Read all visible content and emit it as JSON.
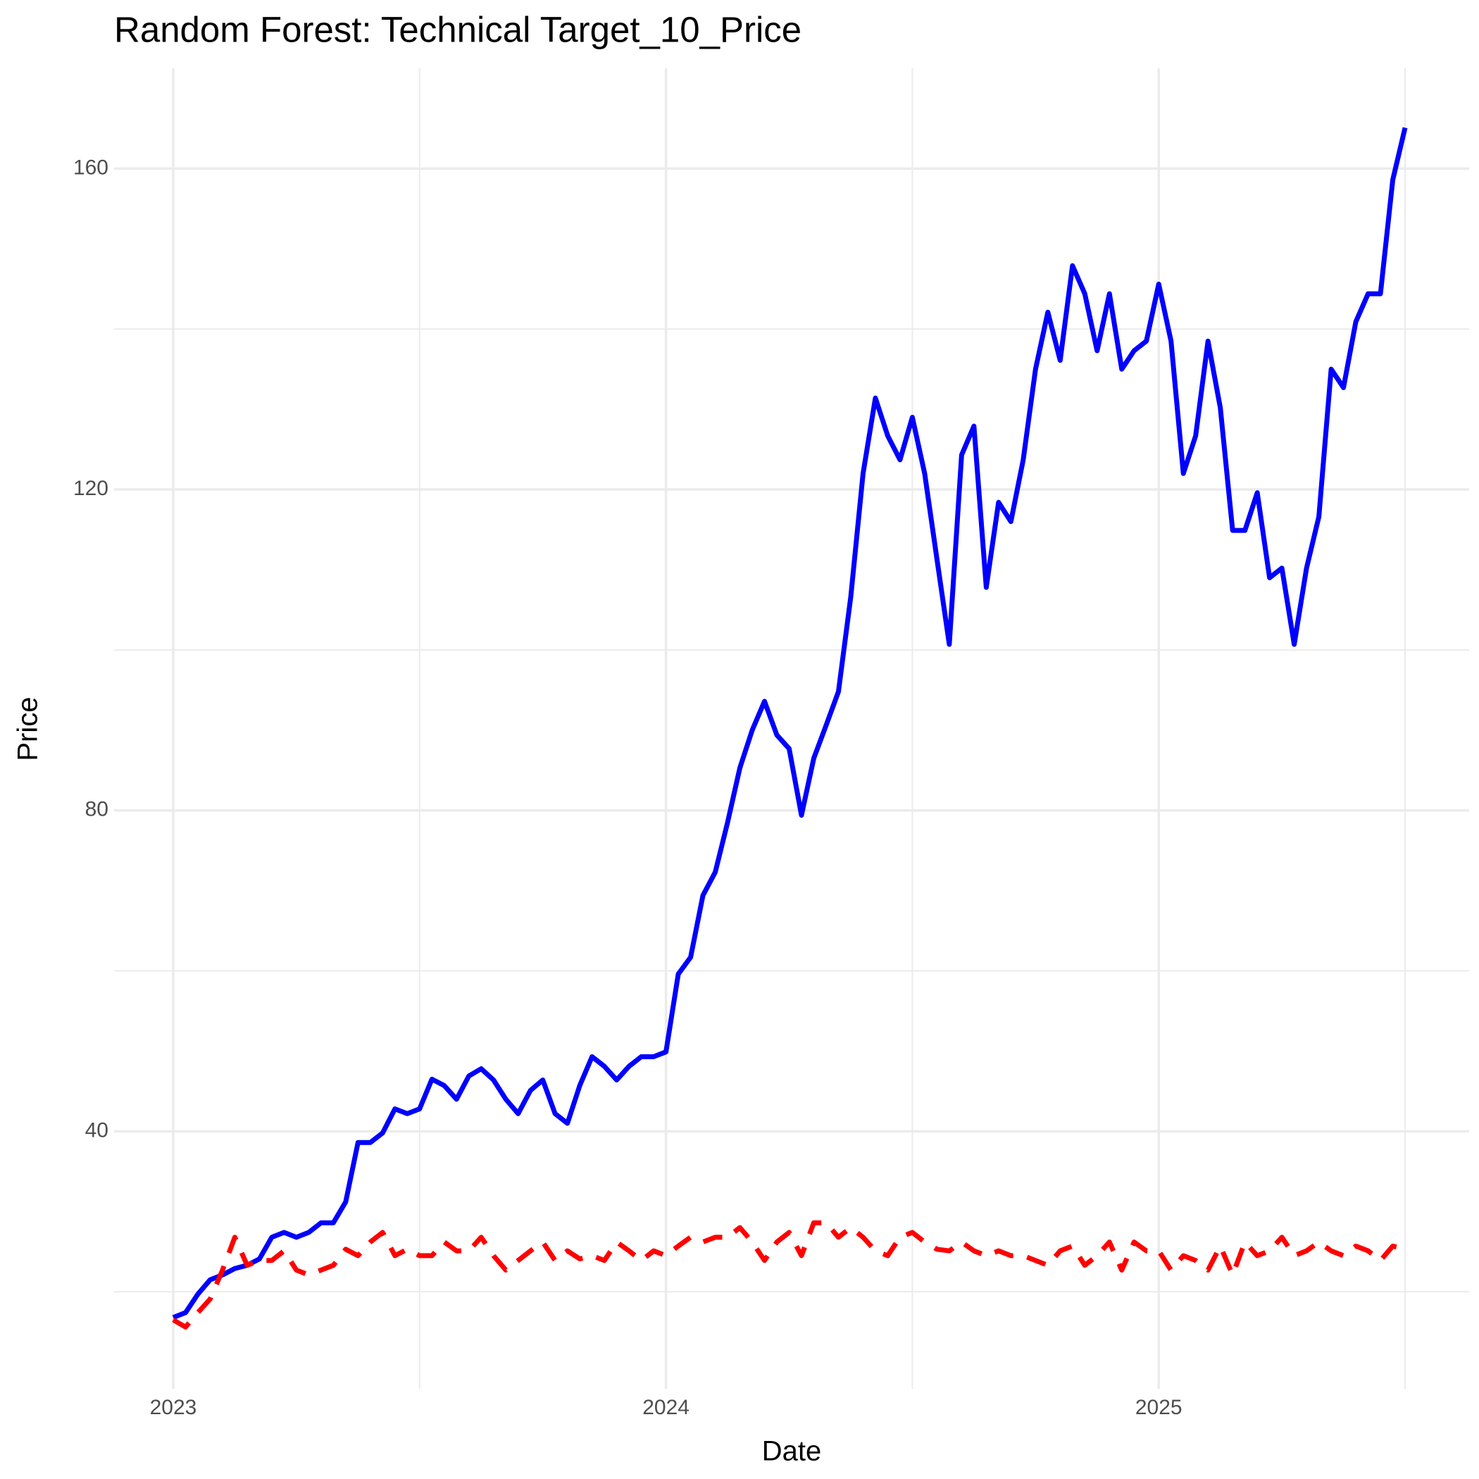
{
  "chart_data": {
    "type": "line",
    "title": "Random Forest: Technical Target_10_Price",
    "xlabel": "Date",
    "ylabel": "Price",
    "x": [
      2023,
      2023.025,
      2023.05,
      2023.075,
      2023.1,
      2023.125,
      2023.15,
      2023.175,
      2023.2,
      2023.225,
      2023.25,
      2023.275,
      2023.3,
      2023.325,
      2023.35,
      2023.375,
      2023.4,
      2023.425,
      2023.45,
      2023.475,
      2023.5,
      2023.525,
      2023.55,
      2023.575,
      2023.6,
      2023.625,
      2023.65,
      2023.675,
      2023.7,
      2023.725,
      2023.75,
      2023.775,
      2023.8,
      2023.825,
      2023.85,
      2023.875,
      2023.9,
      2023.925,
      2023.95,
      2023.975,
      2024,
      2024.025,
      2024.05,
      2024.075,
      2024.1,
      2024.125,
      2024.15,
      2024.175,
      2024.2,
      2024.225,
      2024.25,
      2024.275,
      2024.3,
      2024.325,
      2024.35,
      2024.375,
      2024.4,
      2024.425,
      2024.45,
      2024.475,
      2024.5,
      2024.525,
      2024.55,
      2024.575,
      2024.6,
      2024.625,
      2024.65,
      2024.675,
      2024.7,
      2024.725,
      2024.75,
      2024.775,
      2024.8,
      2024.825,
      2024.85,
      2024.875,
      2024.9,
      2024.925,
      2024.95,
      2024.975,
      2025,
      2025.025,
      2025.05,
      2025.075,
      2025.1,
      2025.125,
      2025.15,
      2025.175,
      2025.2,
      2025.225,
      2025.25,
      2025.275,
      2025.3,
      2025.325,
      2025.35,
      2025.375,
      2025.4,
      2025.425,
      2025.45,
      2025.475,
      2025.5
    ],
    "series": [
      {
        "color": "#0000ff",
        "linestyle": "solid",
        "values": [
          16.8,
          17.4,
          19.7,
          21.5,
          22.1,
          22.9,
          23.3,
          24.1,
          26.8,
          27.4,
          26.8,
          27.4,
          28.6,
          28.6,
          31.2,
          38.6,
          38.6,
          39.8,
          42.8,
          42.2,
          42.8,
          46.5,
          45.7,
          44.0,
          46.9,
          47.8,
          46.4,
          44.0,
          42.2,
          45.1,
          46.4,
          42.2,
          41.0,
          45.7,
          49.3,
          48.1,
          46.4,
          48.1,
          49.3,
          49.3,
          49.9,
          59.6,
          61.7,
          69.4,
          72.3,
          78.5,
          85.3,
          90.0,
          93.6,
          89.4,
          87.7,
          79.4,
          86.5,
          90.6,
          94.8,
          106.6,
          122.0,
          131.4,
          126.7,
          123.7,
          129.0,
          122.0,
          111.3,
          100.7,
          124.3,
          127.9,
          107.8,
          118.4,
          116.0,
          123.7,
          135.0,
          142.1,
          136.1,
          147.9,
          144.4,
          137.3,
          144.4,
          135.0,
          137.3,
          138.5,
          145.6,
          138.5,
          122.0,
          126.7,
          138.5,
          130.2,
          114.9,
          114.9,
          119.6,
          109.0,
          110.2,
          100.7,
          110.2,
          116.6,
          135.0,
          132.7,
          140.9,
          144.4,
          144.4,
          158.6,
          165.1
        ]
      },
      {
        "color": "#ff0000",
        "linestyle": "dashed",
        "values": [
          16.5,
          15.6,
          17.4,
          19.1,
          22.7,
          26.8,
          23.3,
          23.9,
          23.9,
          25.1,
          22.7,
          22.1,
          22.7,
          23.3,
          25.3,
          24.5,
          26.2,
          27.4,
          24.5,
          25.3,
          24.5,
          24.5,
          26.2,
          25.1,
          25.1,
          26.8,
          24.5,
          22.7,
          23.9,
          25.1,
          26.2,
          23.9,
          25.1,
          24.1,
          24.5,
          23.9,
          26.2,
          25.1,
          23.9,
          25.1,
          24.5,
          25.7,
          26.8,
          26.2,
          26.8,
          26.8,
          28.0,
          26.2,
          23.9,
          26.2,
          27.4,
          24.5,
          28.6,
          28.6,
          26.8,
          28.0,
          26.8,
          25.1,
          24.5,
          26.8,
          27.4,
          26.2,
          25.3,
          25.1,
          26.2,
          25.1,
          24.5,
          25.1,
          24.5,
          24.5,
          23.9,
          23.3,
          25.1,
          25.7,
          23.3,
          24.5,
          26.2,
          22.7,
          26.2,
          25.1,
          25.1,
          22.7,
          24.5,
          23.9,
          22.7,
          25.7,
          22.1,
          26.2,
          24.5,
          25.1,
          26.8,
          24.5,
          25.1,
          26.2,
          25.1,
          24.5,
          25.7,
          25.1,
          23.9,
          25.7,
          25.3
        ]
      }
    ],
    "xlim": [
      2022.88,
      2025.63
    ],
    "xticks": [
      2023,
      2024,
      2025
    ],
    "xminorticks": [
      2023.5,
      2024.5,
      2025.5
    ],
    "ylim": [
      7.9,
      172.5
    ],
    "yticks": [
      40,
      80,
      120,
      160
    ],
    "yminorticks": [
      20,
      60,
      100,
      140
    ],
    "grid": true
  }
}
